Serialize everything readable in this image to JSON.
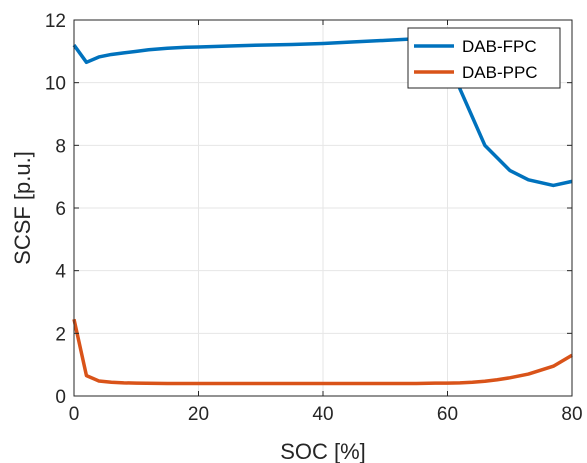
{
  "chart_data": {
    "type": "line",
    "xlabel": "SOC [%]",
    "ylabel": "SCSF [p.u.]",
    "xlim": [
      0,
      80
    ],
    "ylim": [
      0,
      12
    ],
    "xticks": [
      "0",
      "20",
      "40",
      "60",
      "80"
    ],
    "yticks": [
      "0",
      "2",
      "4",
      "6",
      "8",
      "10",
      "12"
    ],
    "grid": true,
    "legend_position": "top-right",
    "series": [
      {
        "name": "DAB-FPC",
        "color": "#0072BD",
        "x": [
          0,
          2,
          4,
          6,
          8,
          10,
          12,
          15,
          18,
          20,
          25,
          30,
          35,
          40,
          45,
          50,
          55,
          58,
          60,
          62,
          64,
          66,
          68,
          70,
          73,
          77,
          80
        ],
        "y": [
          11.2,
          10.65,
          10.82,
          10.9,
          10.95,
          11.0,
          11.05,
          11.1,
          11.13,
          11.14,
          11.17,
          11.2,
          11.22,
          11.25,
          11.3,
          11.35,
          11.4,
          11.4,
          11.1,
          9.8,
          8.9,
          8.0,
          7.6,
          7.2,
          6.9,
          6.72,
          6.85
        ]
      },
      {
        "name": "DAB-PPC",
        "color": "#D95319",
        "x": [
          0,
          2,
          4,
          6,
          8,
          10,
          15,
          20,
          30,
          40,
          50,
          55,
          58,
          60,
          62,
          64,
          66,
          68,
          70,
          73,
          77,
          80
        ],
        "y": [
          2.45,
          0.65,
          0.48,
          0.44,
          0.42,
          0.41,
          0.4,
          0.4,
          0.4,
          0.4,
          0.4,
          0.4,
          0.41,
          0.41,
          0.42,
          0.44,
          0.47,
          0.52,
          0.58,
          0.7,
          0.95,
          1.3
        ]
      }
    ]
  }
}
